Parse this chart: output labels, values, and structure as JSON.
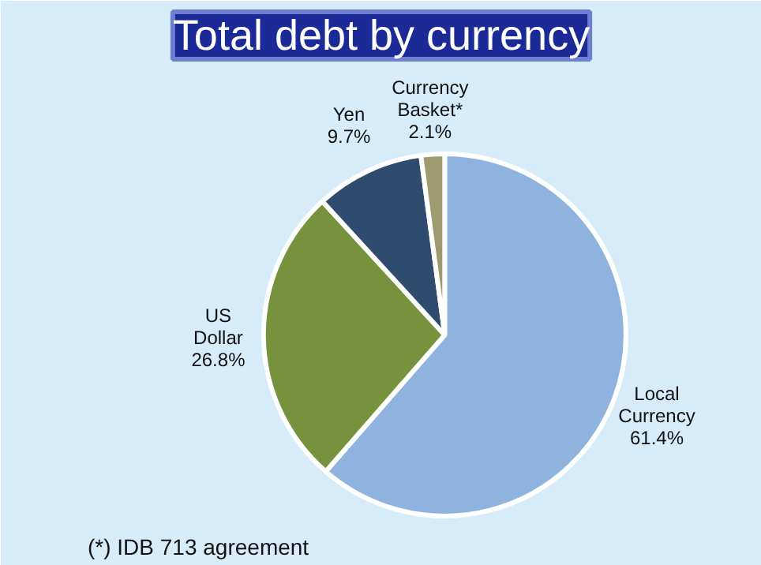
{
  "chart_data": {
    "type": "pie",
    "title": "Total debt by currency",
    "categories": [
      "Local Currency",
      "US Dollar",
      "Yen",
      "Currency Basket*"
    ],
    "values": [
      61.4,
      26.8,
      9.7,
      2.1
    ],
    "value_labels": [
      "61.4%",
      "26.8%",
      "9.7%",
      "2.1%"
    ],
    "colors": [
      "#8fb3df",
      "#77923c",
      "#2f4b6e",
      "#9c9a6e"
    ],
    "annotations": [
      "(*) IDB 713 agreement"
    ]
  }
}
